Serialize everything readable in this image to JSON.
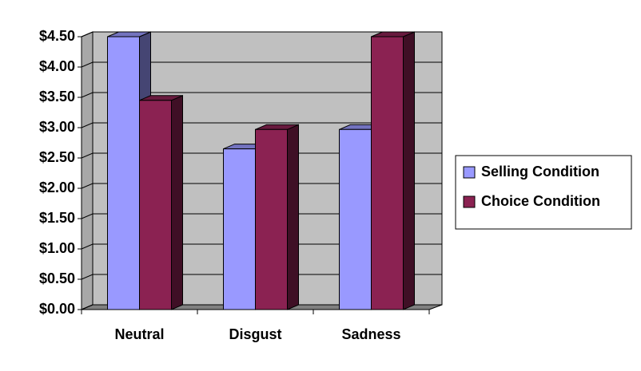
{
  "chart_data": {
    "type": "bar3d",
    "categories": [
      "Neutral",
      "Disgust",
      "Sadness"
    ],
    "series": [
      {
        "name": "Selling Condition",
        "color": "#9999ff",
        "values": [
          4.5,
          2.65,
          2.97
        ]
      },
      {
        "name": "Choice Condition",
        "color": "#8b2252",
        "values": [
          3.45,
          2.97,
          4.5
        ]
      }
    ],
    "ylim": [
      0,
      4.5
    ],
    "yticks": [
      {
        "value": 0,
        "label": "$0.00"
      },
      {
        "value": 0.5,
        "label": "$0.50"
      },
      {
        "value": 1,
        "label": "$1.00"
      },
      {
        "value": 1.5,
        "label": "$1.50"
      },
      {
        "value": 2,
        "label": "$2.00"
      },
      {
        "value": 2.5,
        "label": "$2.50"
      },
      {
        "value": 3,
        "label": "$3.00"
      },
      {
        "value": 3.5,
        "label": "$3.50"
      },
      {
        "value": 4,
        "label": "$4.00"
      },
      {
        "value": 4.5,
        "label": "$4.50"
      }
    ],
    "grid": true,
    "legend": "right"
  }
}
